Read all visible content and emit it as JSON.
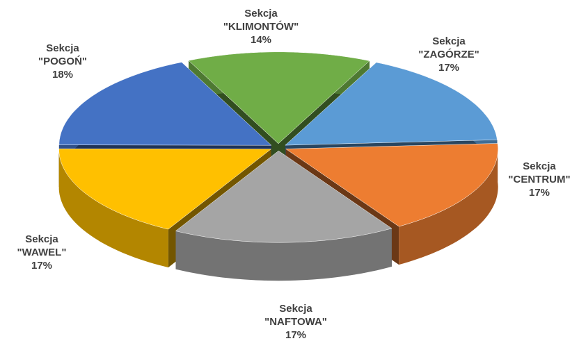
{
  "chart_data": {
    "type": "pie3d",
    "categories": [
      "Sekcja \"KLIMONTÓW\"",
      "Sekcja \"ZAGÓRZE\"",
      "Sekcja \"CENTRUM\"",
      "Sekcja \"NAFTOWA\"",
      "Sekcja \"WAWEL\"",
      "Sekcja \"POGOŃ\""
    ],
    "values": [
      14,
      17,
      17,
      17,
      17,
      18
    ],
    "value_labels": [
      "14%",
      "17%",
      "17%",
      "17%",
      "17%",
      "18%"
    ],
    "colors": [
      "#70ad47",
      "#5b9bd5",
      "#ed7d31",
      "#a5a5a5",
      "#ffc000",
      "#4472c4"
    ]
  }
}
